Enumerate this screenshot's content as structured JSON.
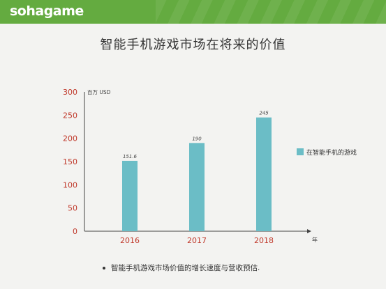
{
  "header": {
    "logo_text": "sohagame",
    "banner_color": "#64ab40"
  },
  "title": "智能手机游戏市场在将来的价值",
  "footnote": "智能手机游戏市场价值的增长速度与营收预估.",
  "chart_data": {
    "type": "bar",
    "categories": [
      "2016",
      "2017",
      "2018"
    ],
    "series": [
      {
        "name": "在智能手机的游戏",
        "values": [
          151.6,
          190,
          245
        ],
        "data_labels": [
          "151.6",
          "190",
          "245"
        ],
        "color": "#6bbdc6"
      }
    ],
    "ylim": [
      0,
      300
    ],
    "yticks": [
      0,
      50,
      100,
      150,
      200,
      250,
      300
    ],
    "ylabel": "百万 USD",
    "xlabel": "年",
    "tick_color": "#c0392b",
    "legend_position": "right",
    "grid": false
  }
}
